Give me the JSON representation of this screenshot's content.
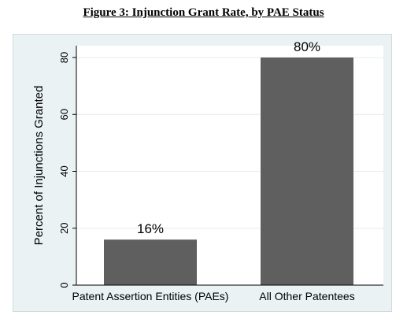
{
  "figure": {
    "title": "Figure 3:  Injunction Grant Rate, by PAE Status"
  },
  "chart_data": {
    "type": "bar",
    "categories": [
      "Patent Assertion Entities (PAEs)",
      "All Other Patentees"
    ],
    "values": [
      16,
      80
    ],
    "data_labels": [
      "16%",
      "80%"
    ],
    "title": "",
    "xlabel": "",
    "ylabel": "Percent of Injunctions Granted",
    "ylim": [
      0,
      80
    ],
    "yticks": [
      0,
      20,
      40,
      60,
      80
    ],
    "grid": true,
    "bar_color": "#5f5f5f",
    "background": "#eaf2f3",
    "plot_background": "#ffffff"
  }
}
